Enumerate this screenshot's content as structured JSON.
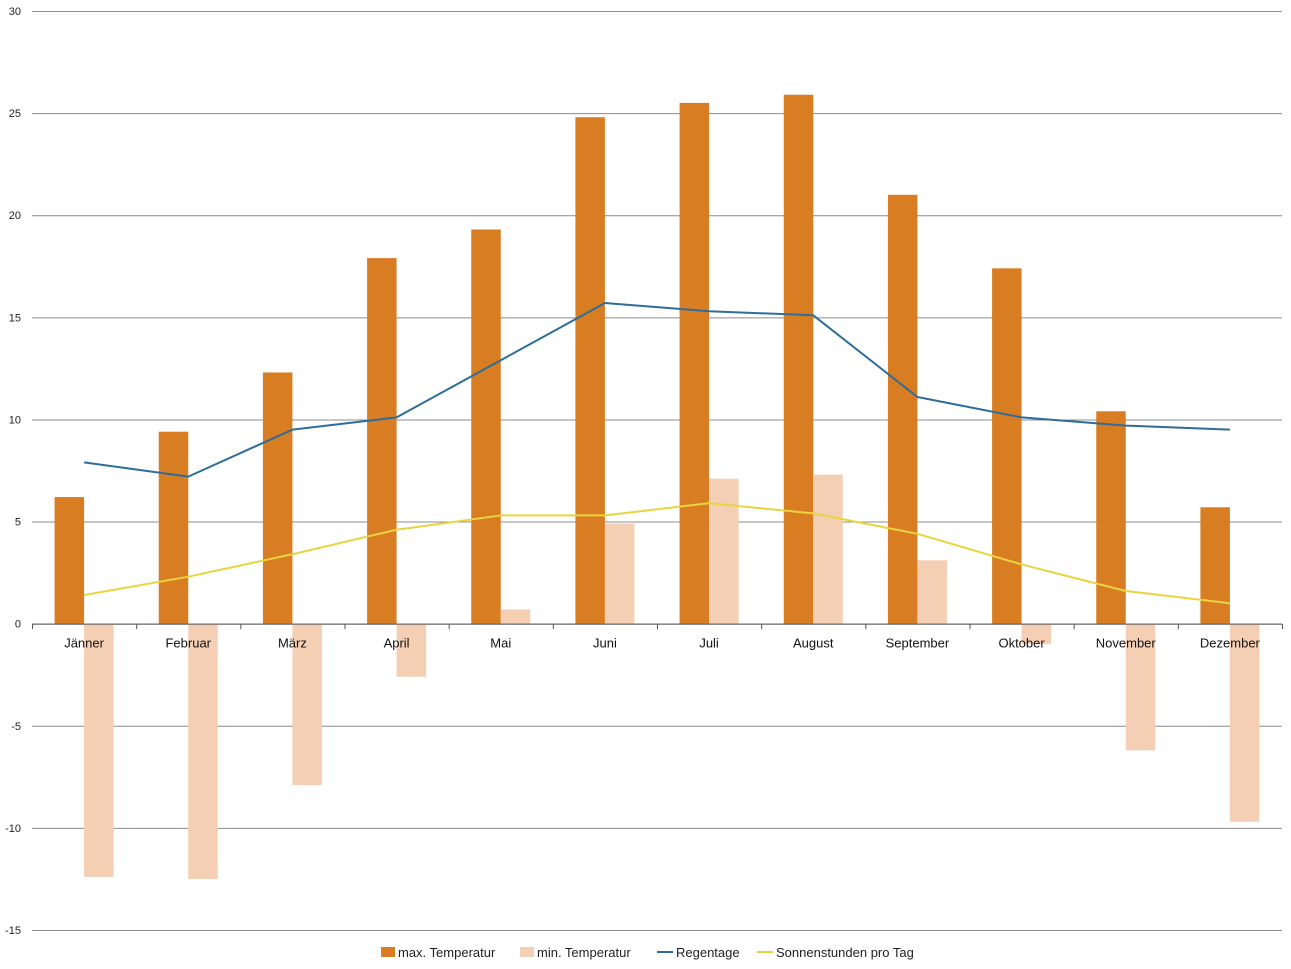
{
  "chart_data": {
    "type": "bar",
    "categories": [
      "Jänner",
      "Februar",
      "März",
      "April",
      "Mai",
      "Juni",
      "Juli",
      "August",
      "September",
      "Oktober",
      "November",
      "Dezember"
    ],
    "series": [
      {
        "name": "max. Temperatur",
        "kind": "bar",
        "color": "#d97d23",
        "values": [
          6.2,
          9.4,
          12.3,
          17.9,
          19.3,
          24.8,
          25.5,
          25.9,
          21.0,
          17.4,
          10.4,
          5.7
        ]
      },
      {
        "name": "min. Temperatur",
        "kind": "bar",
        "color": "#f4cfb3",
        "values": [
          -12.4,
          -12.5,
          -7.9,
          -2.6,
          0.7,
          4.9,
          7.1,
          7.3,
          3.1,
          -1.0,
          -6.2,
          -9.7
        ]
      },
      {
        "name": "Regentage",
        "kind": "line",
        "color": "#2e6d9a",
        "values": [
          7.9,
          7.2,
          9.5,
          10.1,
          12.9,
          15.7,
          15.3,
          15.1,
          11.1,
          10.1,
          9.7,
          9.5
        ]
      },
      {
        "name": "Sonnenstunden pro Tag",
        "kind": "line",
        "color": "#e9d43f",
        "values": [
          1.4,
          2.3,
          3.4,
          4.6,
          5.3,
          5.3,
          5.9,
          5.4,
          4.4,
          2.9,
          1.6,
          1.0
        ]
      }
    ],
    "ylim": [
      -15,
      30
    ],
    "yticks": [
      30,
      25,
      20,
      15,
      10,
      5,
      0,
      -5,
      -10,
      -15
    ],
    "grid": true,
    "legend_position": "bottom"
  }
}
